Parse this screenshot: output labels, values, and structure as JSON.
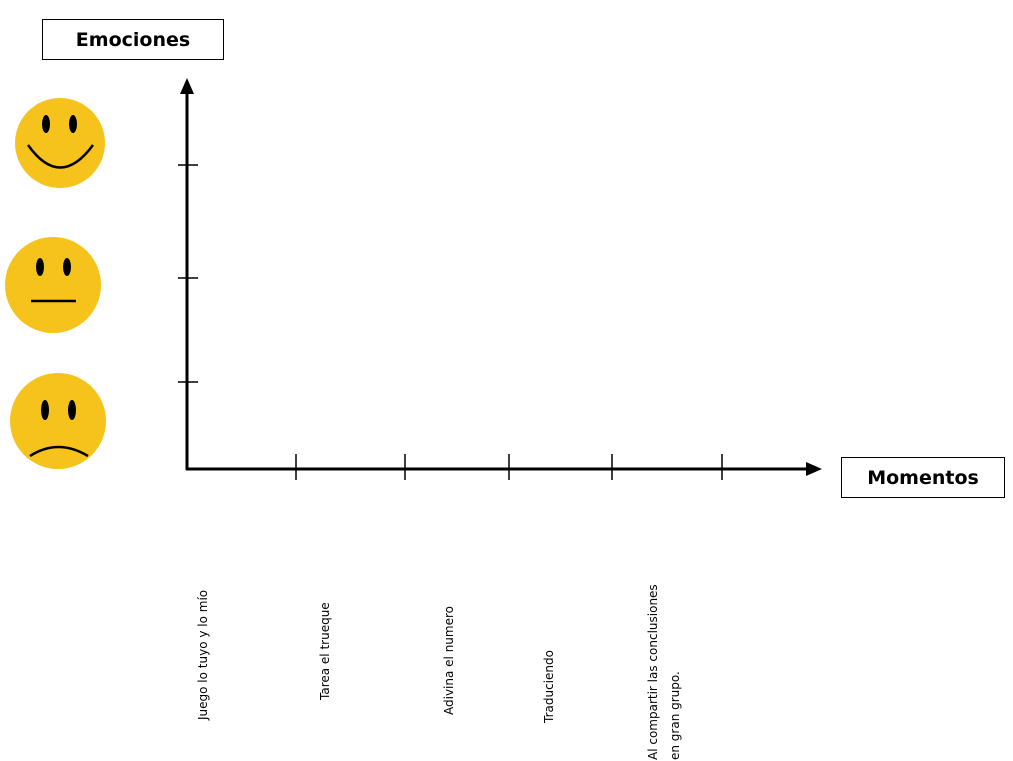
{
  "y_axis_title": "Emociones",
  "x_axis_title": "Momentos",
  "emotions": [
    {
      "icon": "happy-face-icon",
      "meaning": "feliz"
    },
    {
      "icon": "neutral-face-icon",
      "meaning": "neutral"
    },
    {
      "icon": "sad-face-icon",
      "meaning": "triste"
    }
  ],
  "moments": [
    {
      "label": "Juego lo tuyo y lo mío"
    },
    {
      "label": "Tarea el trueque"
    },
    {
      "label": "Adivina el numero"
    },
    {
      "label": "Traduciendo"
    },
    {
      "label_line1": "Al compartir  las conclusiones",
      "label_line2": "en gran  grupo."
    }
  ],
  "colors": {
    "face_fill": "#F6C31C",
    "face_features": "#000000",
    "axis": "#000000"
  }
}
